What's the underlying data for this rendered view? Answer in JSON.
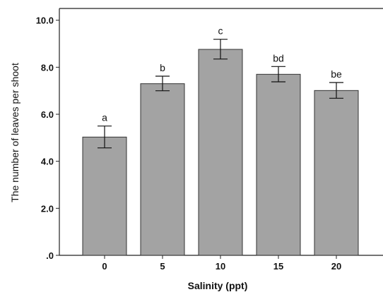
{
  "chart_data": {
    "type": "bar",
    "categories": [
      "0",
      "5",
      "10",
      "15",
      "20"
    ],
    "values": [
      5.03,
      7.3,
      8.76,
      7.7,
      7.01
    ],
    "error_low": [
      4.57,
      7.0,
      8.35,
      7.38,
      6.68
    ],
    "error_high": [
      5.5,
      7.62,
      9.19,
      8.03,
      7.35
    ],
    "significance_labels": [
      "a",
      "b",
      "c",
      "bd",
      "be"
    ],
    "xlabel": "Salinity (ppt)",
    "ylabel": "The number of leaves per shoot",
    "ylim": [
      0,
      10.5
    ],
    "yticks": [
      {
        "value": 0,
        "label": ".0"
      },
      {
        "value": 2,
        "label": "2.0"
      },
      {
        "value": 4,
        "label": "4.0"
      },
      {
        "value": 6,
        "label": "6.0"
      },
      {
        "value": 8,
        "label": "8.0"
      },
      {
        "value": 10,
        "label": "10.0"
      }
    ],
    "grid": false,
    "colors": {
      "bar_fill": "#a3a3a3",
      "bar_stroke": "#333333",
      "axis": "#222222"
    }
  }
}
